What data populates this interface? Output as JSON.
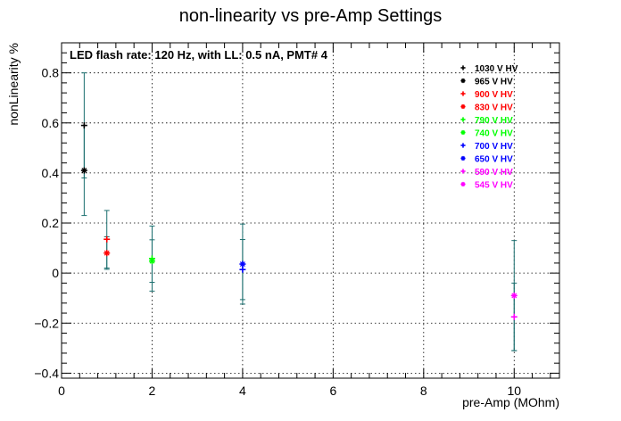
{
  "chart_data": {
    "type": "scatter",
    "title": "non-linearity vs pre-Amp Settings",
    "xlabel": "pre-Amp (MOhm)",
    "ylabel": "nonLinearity %",
    "annotation": "LED flash rate: 120 Hz, with LL: 0.5 nA, PMT# 4",
    "xlim": [
      0,
      11
    ],
    "ylim": [
      -0.42,
      0.92
    ],
    "x_ticks": [
      0,
      2,
      4,
      6,
      8,
      10
    ],
    "y_ticks": [
      -0.4,
      -0.2,
      0,
      0.2,
      0.4,
      0.6,
      0.8
    ],
    "x_tick_labels": [
      "0",
      "2",
      "4",
      "6",
      "8",
      "10"
    ],
    "y_tick_labels": [
      "−0.4",
      "−0.2",
      "0",
      "0.2",
      "0.4",
      "0.6",
      "0.8"
    ],
    "grid": true,
    "legend_position": "top-right",
    "errorbar_color": "#1a6e6e",
    "series": [
      {
        "name": "1030 V HV",
        "color": "#000000",
        "marker": "plus",
        "x": [
          0.5
        ],
        "y": [
          0.59
        ],
        "yerr": [
          0.21
        ]
      },
      {
        "name": "965 V HV",
        "color": "#000000",
        "marker": "star",
        "x": [
          0.5
        ],
        "y": [
          0.41
        ],
        "yerr": [
          0.18
        ]
      },
      {
        "name": "900 V HV",
        "color": "#ff0000",
        "marker": "plus",
        "x": [
          1
        ],
        "y": [
          0.135
        ],
        "yerr": [
          0.115
        ]
      },
      {
        "name": "830 V HV",
        "color": "#ff0000",
        "marker": "star",
        "x": [
          1
        ],
        "y": [
          0.08
        ],
        "yerr": [
          0.065
        ]
      },
      {
        "name": "790 V HV",
        "color": "#00ff00",
        "marker": "plus",
        "x": [
          2
        ],
        "y": [
          0.058
        ],
        "yerr": [
          0.13
        ]
      },
      {
        "name": "740 V HV",
        "color": "#00ff00",
        "marker": "star",
        "x": [
          2
        ],
        "y": [
          0.048
        ],
        "yerr": [
          0.085
        ]
      },
      {
        "name": "700 V HV",
        "color": "#0000ff",
        "marker": "plus",
        "x": [
          4
        ],
        "y": [
          0.014
        ],
        "yerr": [
          0.12
        ]
      },
      {
        "name": "650 V HV",
        "color": "#0000ff",
        "marker": "star",
        "x": [
          4
        ],
        "y": [
          0.036
        ],
        "yerr": [
          0.16
        ]
      },
      {
        "name": "590 V HV",
        "color": "#ff00ff",
        "marker": "plus",
        "x": [
          10
        ],
        "y": [
          -0.175
        ],
        "yerr": [
          0.135
        ]
      },
      {
        "name": "545 V HV",
        "color": "#ff00ff",
        "marker": "star",
        "x": [
          10
        ],
        "y": [
          -0.09
        ],
        "yerr": [
          0.22
        ]
      }
    ]
  }
}
